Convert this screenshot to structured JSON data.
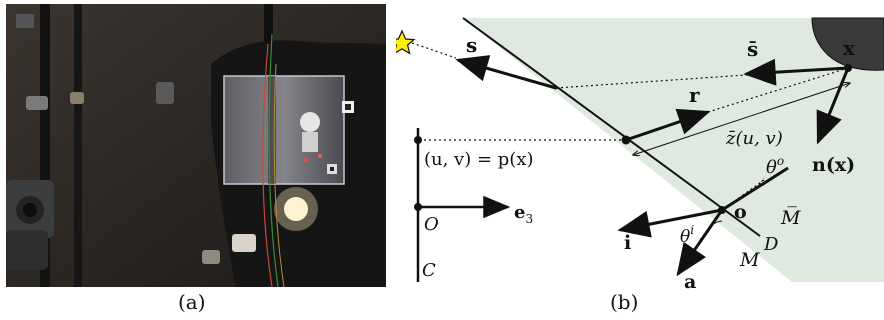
{
  "figure": {
    "caption_a": "(a)",
    "caption_b": "(b)"
  },
  "diagram": {
    "labels": {
      "s": "s",
      "s_bar": "s̄",
      "x": "x",
      "r": "r",
      "z_bar": "z̄(u, v)",
      "n": "n(x)",
      "theta_o": "θ",
      "theta_o_sup": "o",
      "o": "o",
      "m_bar": "M̅",
      "d": "D",
      "m": "M",
      "i": "i",
      "theta_i": "θ",
      "theta_i_sup": "i",
      "a": "a",
      "uv": "(u, v) = p(x)",
      "origin": "O",
      "e3": "e",
      "e3_sub": "3",
      "c": "C"
    },
    "colors": {
      "medium_fill": "#dfe9df",
      "object_fill": "#3a3a3a",
      "star_fill": "#ffee00",
      "line": "#111111"
    }
  }
}
